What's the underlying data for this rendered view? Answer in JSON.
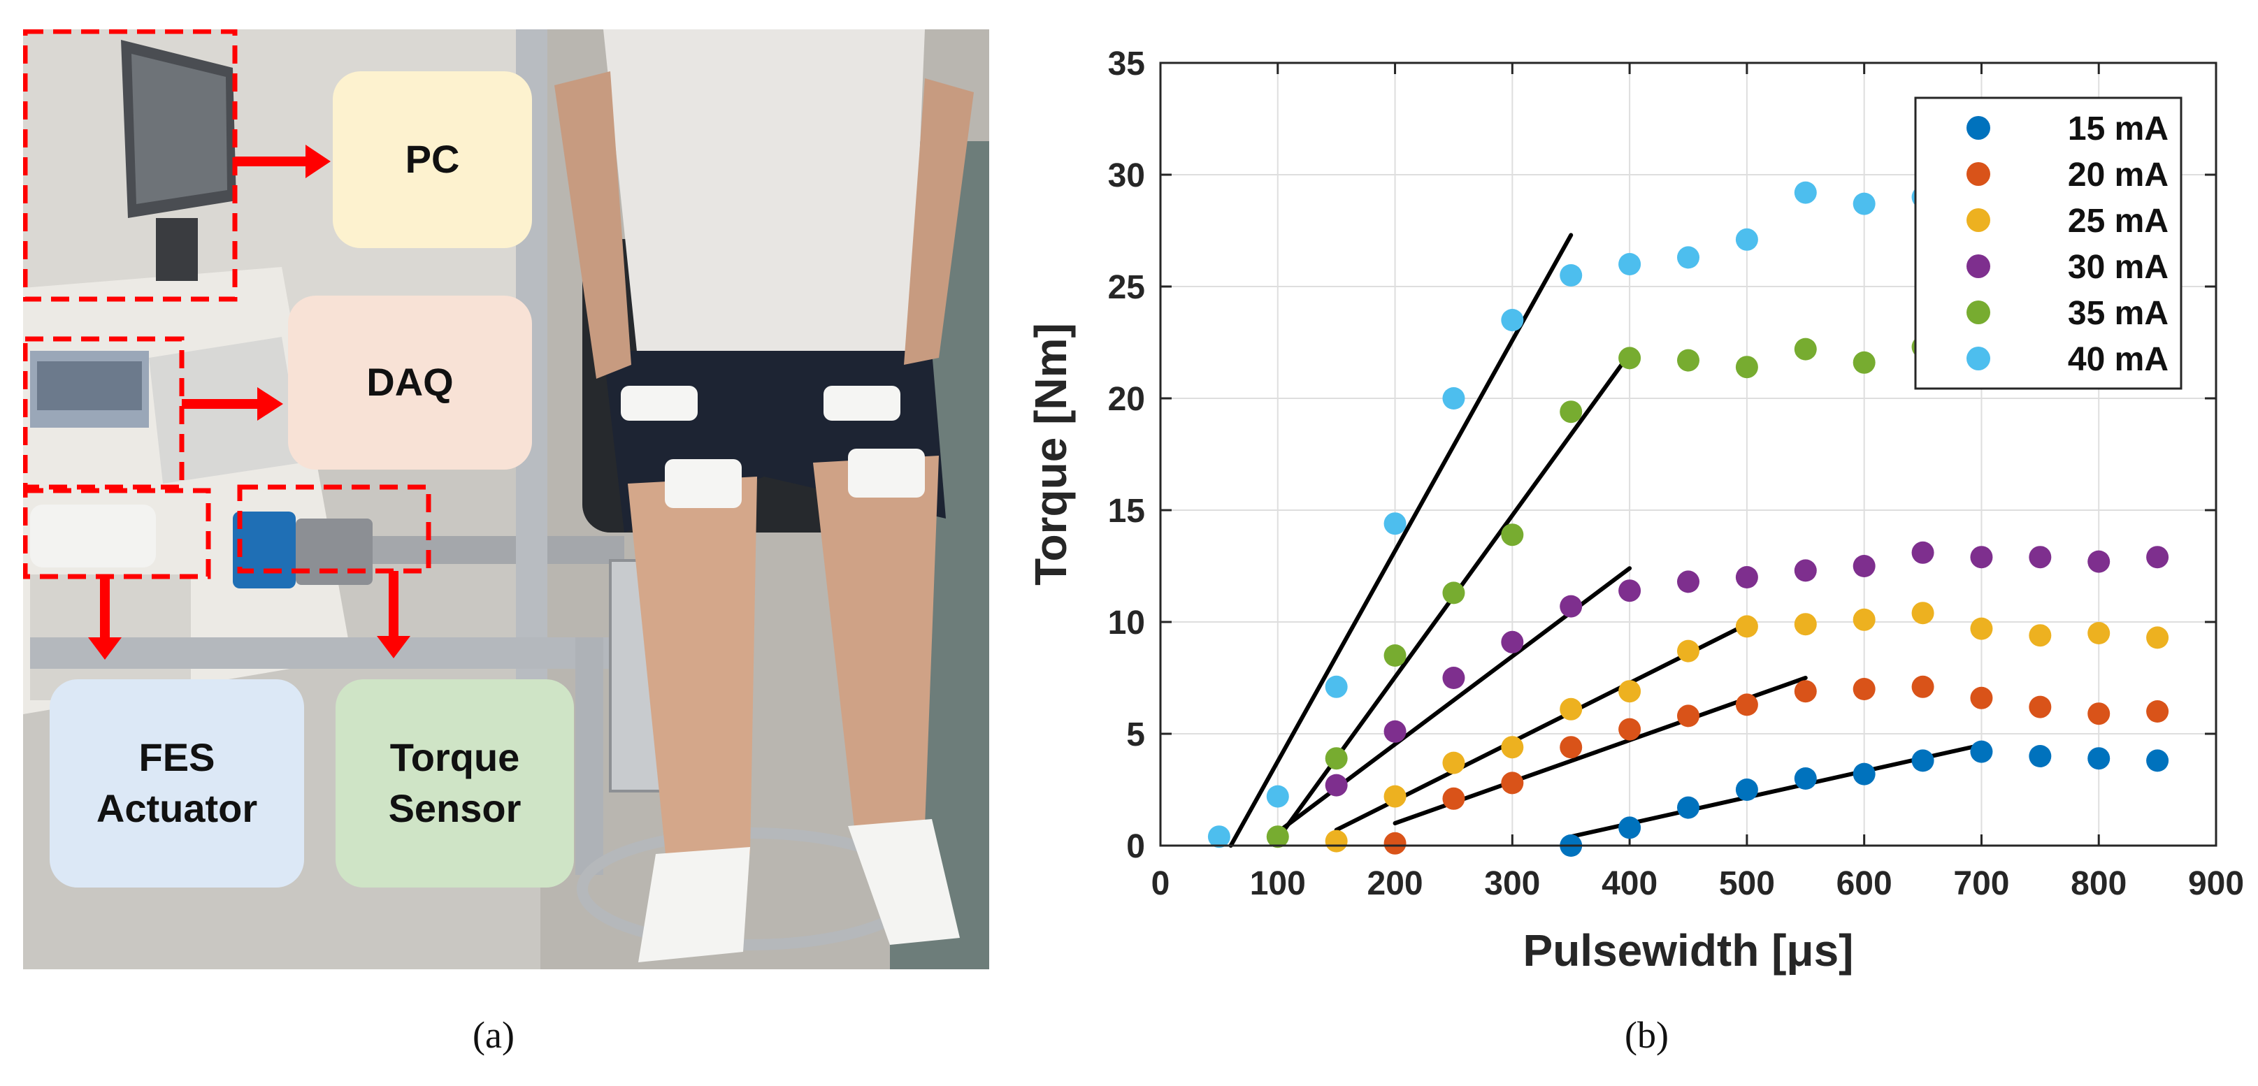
{
  "panel_a": {
    "caption": "(a)",
    "boxes": {
      "pc": "PC",
      "daq": "DAQ",
      "fes": "FES\nActuator",
      "torque": "Torque\nSensor"
    }
  },
  "panel_b": {
    "caption": "(b)"
  },
  "colors": {
    "15": "#0072bd",
    "20": "#d95319",
    "25": "#edb120",
    "30": "#7e2f8e",
    "35": "#77ac30",
    "40": "#4dbeee",
    "annotation": "#ff0000"
  },
  "chart_data": {
    "type": "scatter",
    "xlabel": "Pulsewidth [μs]",
    "ylabel": "Torque [Nm]",
    "xlim": [
      0,
      900
    ],
    "ylim": [
      0,
      35
    ],
    "xticks": [
      0,
      100,
      200,
      300,
      400,
      500,
      600,
      700,
      800,
      900
    ],
    "yticks": [
      0,
      5,
      10,
      15,
      20,
      25,
      30,
      35
    ],
    "grid": true,
    "legend_position": "top-right",
    "series": [
      {
        "name": "15 mA",
        "color": "#0072bd",
        "x": [
          350,
          400,
          450,
          500,
          550,
          600,
          650,
          700,
          750,
          800,
          850
        ],
        "y": [
          0.0,
          0.8,
          1.7,
          2.5,
          3.0,
          3.2,
          3.8,
          4.2,
          4.0,
          3.9,
          3.8
        ],
        "fit": [
          [
            350,
            0.4
          ],
          [
            700,
            4.5
          ]
        ]
      },
      {
        "name": "20 mA",
        "color": "#d95319",
        "x": [
          200,
          250,
          300,
          350,
          400,
          450,
          500,
          550,
          600,
          650,
          700,
          750,
          800,
          850
        ],
        "y": [
          0.1,
          2.1,
          2.8,
          4.4,
          5.2,
          5.8,
          6.3,
          6.9,
          7.0,
          7.1,
          6.6,
          6.2,
          5.9,
          6.0
        ],
        "fit": [
          [
            200,
            1.0
          ],
          [
            550,
            7.5
          ]
        ]
      },
      {
        "name": "25 mA",
        "color": "#edb120",
        "x": [
          150,
          200,
          250,
          300,
          350,
          400,
          450,
          500,
          550,
          600,
          650,
          700,
          750,
          800,
          850
        ],
        "y": [
          0.2,
          2.2,
          3.7,
          4.4,
          6.1,
          6.9,
          8.7,
          9.8,
          9.9,
          10.1,
          10.4,
          9.7,
          9.4,
          9.5,
          9.3
        ],
        "fit": [
          [
            150,
            0.7
          ],
          [
            500,
            9.9
          ]
        ]
      },
      {
        "name": "30 mA",
        "color": "#7e2f8e",
        "x": [
          150,
          200,
          250,
          300,
          350,
          400,
          450,
          500,
          550,
          600,
          650,
          700,
          750,
          800,
          850
        ],
        "y": [
          2.7,
          5.1,
          7.5,
          9.1,
          10.7,
          11.4,
          11.8,
          12.0,
          12.3,
          12.5,
          13.1,
          12.9,
          12.9,
          12.7,
          12.9
        ],
        "fit": [
          [
            100,
            0.6
          ],
          [
            400,
            12.4
          ]
        ]
      },
      {
        "name": "35 mA",
        "color": "#77ac30",
        "x": [
          100,
          150,
          200,
          250,
          300,
          350,
          400,
          450,
          500,
          550,
          600,
          650
        ],
        "y": [
          0.4,
          3.9,
          8.5,
          11.3,
          13.9,
          19.4,
          21.8,
          21.7,
          21.4,
          22.2,
          21.6,
          22.3
        ],
        "fit": [
          [
            100,
            0.3
          ],
          [
            400,
            22.0
          ]
        ]
      },
      {
        "name": "40 mA",
        "color": "#4dbeee",
        "x": [
          50,
          100,
          150,
          200,
          250,
          300,
          350,
          400,
          450,
          500,
          550,
          600,
          650
        ],
        "y": [
          0.4,
          2.2,
          7.1,
          14.4,
          20.0,
          23.5,
          25.5,
          26.0,
          26.3,
          27.1,
          29.2,
          28.7,
          29.0
        ],
        "fit": [
          [
            60,
            0.0
          ],
          [
            350,
            27.3
          ]
        ]
      }
    ]
  }
}
